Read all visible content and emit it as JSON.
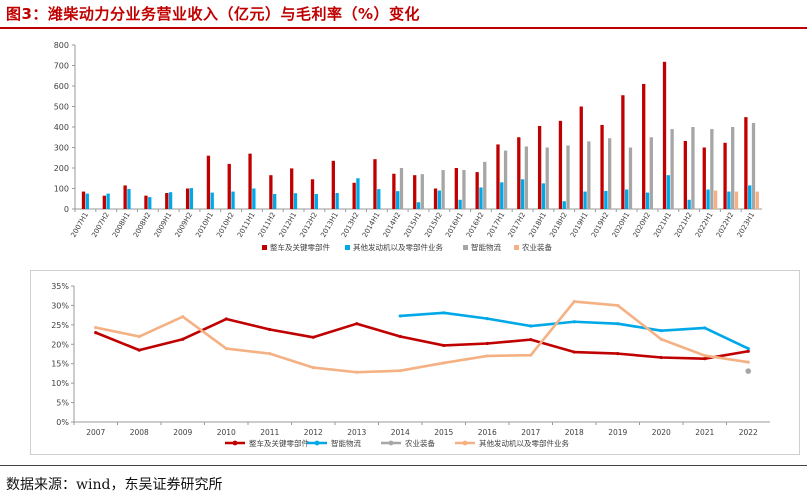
{
  "figure": {
    "title": "图3：潍柴动力分业务营业收入（亿元）与毛利率（%）变化",
    "source": "数据来源：wind，东吴证券研究所"
  },
  "colors": {
    "red": "#c00000",
    "blue": "#00a8e8",
    "gray": "#a6a6a6",
    "peach": "#f4b183",
    "title": "#c00000"
  },
  "chart_data": [
    {
      "type": "bar",
      "ylim": [
        0,
        800
      ],
      "yticks": [
        0,
        100,
        200,
        300,
        400,
        500,
        600,
        700,
        800
      ],
      "grid": false,
      "legend_position": "bottom",
      "categories": [
        "2007H1",
        "2007H2",
        "2008H1",
        "2008H2",
        "2009H1",
        "2009H2",
        "2010H1",
        "2010H2",
        "2011H1",
        "2011H2",
        "2012H1",
        "2012H2",
        "2013H1",
        "2013H2",
        "2014H1",
        "2014H2",
        "2015H1",
        "2015H2",
        "2016H1",
        "2016H2",
        "2017H1",
        "2017H2",
        "2018H1",
        "2018H2",
        "2019H1",
        "2019H2",
        "2020H1",
        "2020H2",
        "2021H1",
        "2021H2",
        "2022H1",
        "2022H2",
        "2023H1"
      ],
      "series": [
        {
          "name": "整车及关键零部件",
          "color": "#c00000",
          "values": [
            85,
            65,
            115,
            65,
            78,
            100,
            260,
            220,
            270,
            165,
            198,
            145,
            235,
            128,
            243,
            172,
            165,
            100,
            200,
            180,
            315,
            350,
            405,
            430,
            500,
            410,
            555,
            610,
            718,
            332,
            300,
            323,
            448
          ]
        },
        {
          "name": "其他发动机以及零部件业务",
          "color": "#00a8e8",
          "values": [
            75,
            75,
            98,
            58,
            82,
            102,
            80,
            85,
            100,
            73,
            77,
            73,
            78,
            150,
            97,
            87,
            33,
            90,
            45,
            105,
            130,
            145,
            125,
            38,
            85,
            88,
            95,
            80,
            165,
            45,
            95,
            85,
            115
          ]
        },
        {
          "name": "智能物流",
          "color": "#a6a6a6",
          "values": [
            null,
            null,
            null,
            null,
            null,
            null,
            null,
            null,
            null,
            null,
            null,
            null,
            null,
            null,
            null,
            200,
            170,
            190,
            190,
            230,
            285,
            305,
            300,
            310,
            330,
            345,
            300,
            350,
            390,
            400,
            390,
            400,
            420
          ]
        },
        {
          "name": "农业装备",
          "color": "#f4b183",
          "values": [
            null,
            null,
            null,
            null,
            null,
            null,
            null,
            null,
            null,
            null,
            null,
            null,
            null,
            null,
            null,
            null,
            null,
            null,
            null,
            null,
            null,
            null,
            null,
            null,
            null,
            null,
            null,
            null,
            null,
            null,
            90,
            85,
            85
          ]
        }
      ]
    },
    {
      "type": "line",
      "ylim": [
        0,
        35
      ],
      "ytick_labels": [
        "0%",
        "5%",
        "10%",
        "15%",
        "20%",
        "25%",
        "30%",
        "35%"
      ],
      "grid": false,
      "legend_position": "bottom",
      "categories": [
        "2007",
        "2008",
        "2009",
        "2010",
        "2011",
        "2012",
        "2013",
        "2014",
        "2015",
        "2016",
        "2017",
        "2018",
        "2019",
        "2020",
        "2021",
        "2022"
      ],
      "series": [
        {
          "name": "整车及关键零部件",
          "color": "#c00000",
          "values": [
            23.0,
            18.5,
            21.3,
            26.5,
            23.8,
            21.8,
            25.3,
            22.0,
            19.7,
            20.2,
            21.2,
            18.0,
            17.6,
            16.6,
            16.3,
            18.2
          ]
        },
        {
          "name": "智能物流",
          "color": "#00a8e8",
          "values": [
            null,
            null,
            null,
            null,
            null,
            null,
            null,
            27.3,
            28.1,
            26.6,
            24.7,
            25.8,
            25.3,
            23.5,
            24.2,
            18.9
          ]
        },
        {
          "name": "农业装备",
          "color": "#a6a6a6",
          "values": [
            null,
            null,
            null,
            null,
            null,
            null,
            null,
            null,
            null,
            null,
            null,
            null,
            null,
            null,
            null,
            13.1
          ]
        },
        {
          "name": "其他发动机以及零部件业务",
          "color": "#f4b183",
          "values": [
            24.3,
            22.0,
            27.1,
            18.9,
            17.6,
            14.0,
            12.8,
            13.2,
            15.2,
            17.0,
            17.2,
            31.0,
            30.0,
            21.3,
            17.1,
            15.4
          ]
        }
      ]
    }
  ]
}
